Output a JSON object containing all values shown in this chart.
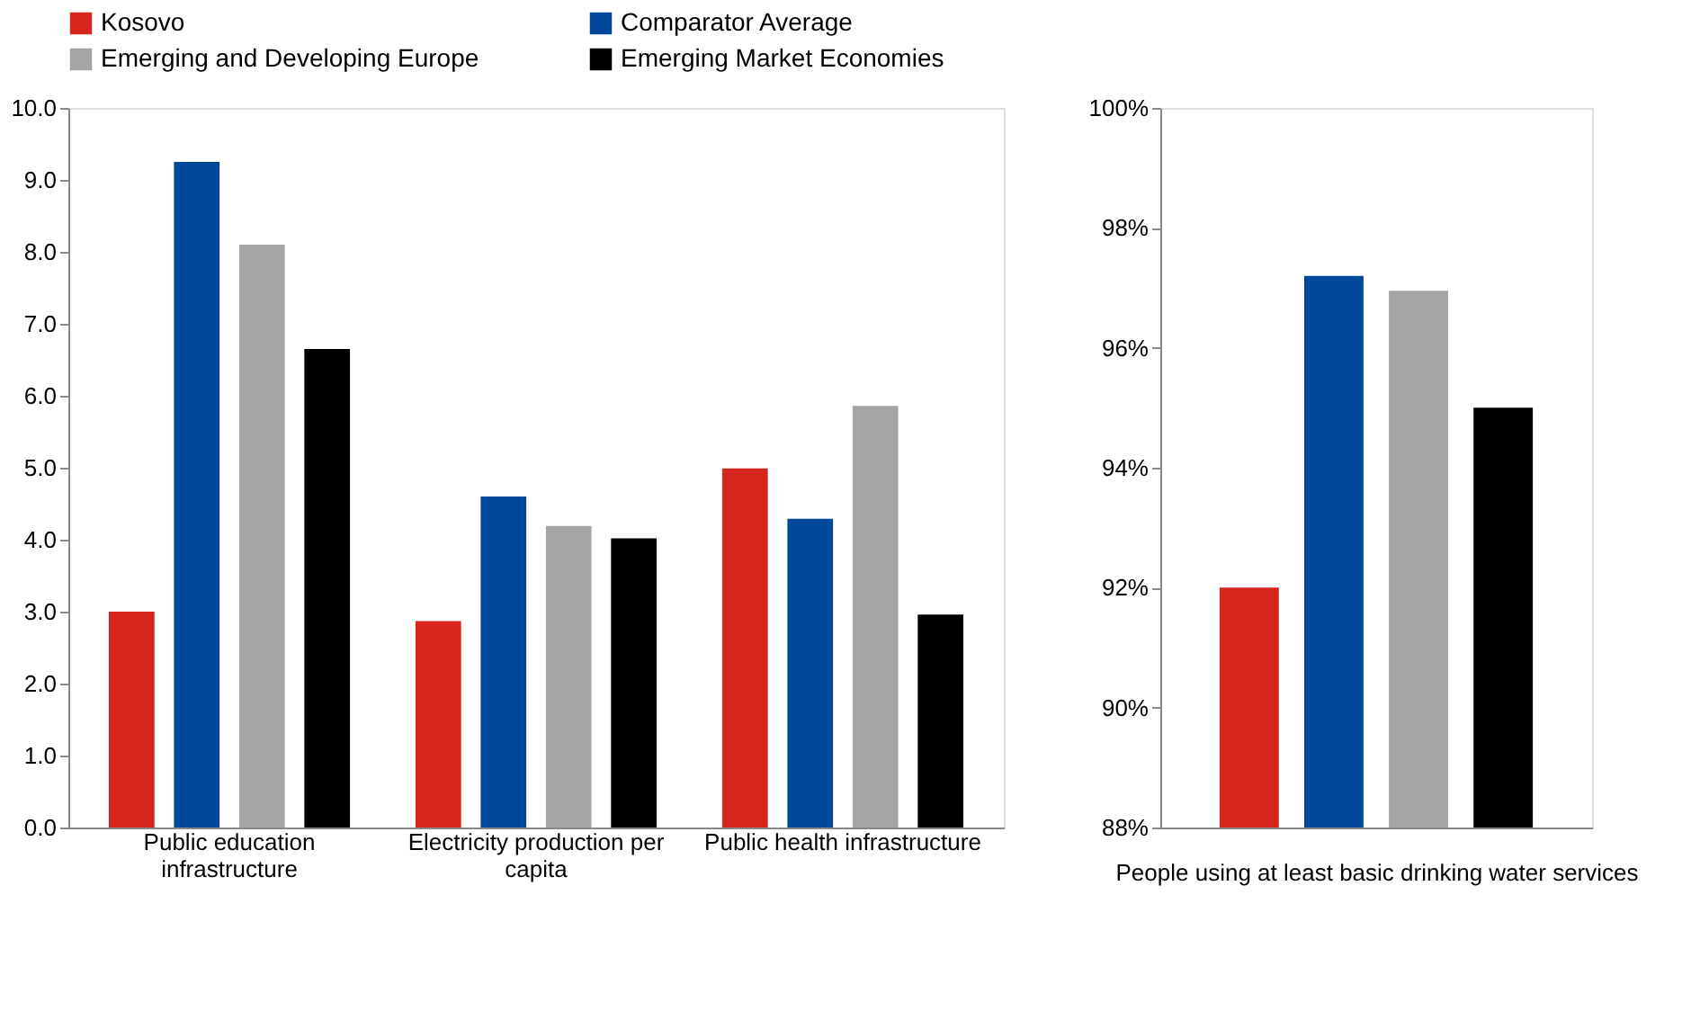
{
  "chart_data": [
    {
      "type": "bar",
      "categories": [
        "Public education infrastructure",
        "Electricity production per capita",
        "Public health infrastructure"
      ],
      "series": [
        {
          "name": "Kosovo",
          "color": "#d7261e",
          "values": [
            3.0,
            2.87,
            4.99
          ]
        },
        {
          "name": "Comparator Average",
          "color": "#00489a",
          "values": [
            9.25,
            4.6,
            4.29
          ]
        },
        {
          "name": "Emerging and Developing Europe",
          "color": "#a5a5a5",
          "values": [
            8.1,
            4.19,
            5.86
          ]
        },
        {
          "name": "Emerging Market Economies",
          "color": "#000000",
          "values": [
            6.65,
            4.02,
            2.96
          ]
        }
      ],
      "ylim": [
        0,
        10
      ],
      "yticks": [
        {
          "value": 0,
          "label": "0.0"
        },
        {
          "value": 1,
          "label": "1.0"
        },
        {
          "value": 2,
          "label": "2.0"
        },
        {
          "value": 3,
          "label": "3.0"
        },
        {
          "value": 4,
          "label": "4.0"
        },
        {
          "value": 5,
          "label": "5.0"
        },
        {
          "value": 6,
          "label": "6.0"
        },
        {
          "value": 7,
          "label": "7.0"
        },
        {
          "value": 8,
          "label": "8.0"
        },
        {
          "value": 9,
          "label": "9.0"
        },
        {
          "value": 10,
          "label": "10.0"
        }
      ],
      "grid": false,
      "legend": "top"
    },
    {
      "type": "bar",
      "categories": [
        null,
        null,
        null,
        null
      ],
      "xlabel": "People using at least basic drinking water services",
      "values": [
        92.0,
        97.2,
        96.95,
        95.0
      ],
      "colors": [
        "#d7261e",
        "#00489a",
        "#a5a5a5",
        "#000000"
      ],
      "ylim": [
        88,
        100
      ],
      "yticks": [
        {
          "value": 88,
          "label": "88%"
        },
        {
          "value": 90,
          "label": "90%"
        },
        {
          "value": 92,
          "label": "92%"
        },
        {
          "value": 94,
          "label": "94%"
        },
        {
          "value": 96,
          "label": "96%"
        },
        {
          "value": 98,
          "label": "98%"
        },
        {
          "value": 100,
          "label": "100%"
        }
      ],
      "grid": false,
      "legend": false
    }
  ]
}
